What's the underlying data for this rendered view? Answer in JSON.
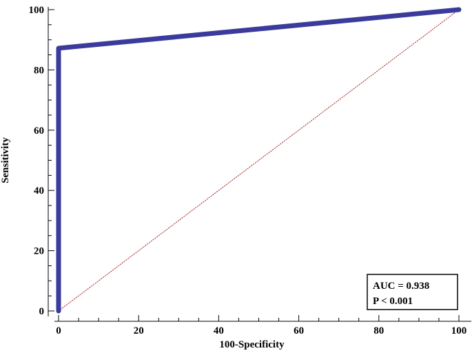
{
  "chart_data": {
    "type": "line",
    "xlabel": "100-Specificity",
    "ylabel": "Sensitivity",
    "xlim": [
      0,
      100
    ],
    "ylim": [
      0,
      100
    ],
    "x_ticks": [
      0,
      20,
      40,
      60,
      80,
      100
    ],
    "y_ticks": [
      0,
      20,
      40,
      60,
      80,
      100
    ],
    "grid": false,
    "legend_placement": "bottom-right",
    "series": [
      {
        "role": "roc-curve",
        "color": "#3b3b9c",
        "points": [
          [
            0,
            0
          ],
          [
            0,
            87.2
          ],
          [
            100,
            100
          ]
        ]
      },
      {
        "role": "reference-diagonal",
        "color": "#a52a2a",
        "style": "dotted",
        "points": [
          [
            0,
            0
          ],
          [
            100,
            100
          ]
        ]
      }
    ],
    "annotations": [
      "AUC = 0.938",
      "P < 0.001"
    ]
  }
}
